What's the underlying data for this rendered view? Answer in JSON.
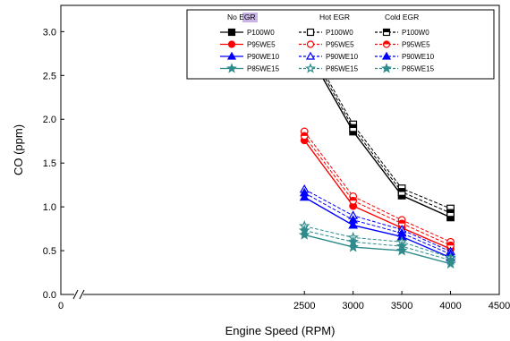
{
  "chart_data": {
    "type": "line",
    "xlabel": "Engine Speed (RPM)",
    "ylabel": "CO (ppm)",
    "xlim": [
      0,
      4500
    ],
    "ylim": [
      0,
      3.3
    ],
    "x_ticks": [
      "0",
      "2500",
      "3000",
      "3500",
      "4000",
      "4500"
    ],
    "y_ticks": [
      "0.0",
      "0.5",
      "1.0",
      "1.5",
      "2.0",
      "2.5",
      "3.0"
    ],
    "axis_break": "//",
    "x": [
      2500,
      3000,
      3500,
      4000
    ],
    "legend": {
      "position": "top-right",
      "groups": [
        {
          "label": "No EGR",
          "highlight": "#c9b4e8"
        },
        {
          "label": "Hot EGR"
        },
        {
          "label": "Cold EGR"
        }
      ]
    },
    "series": [
      {
        "name": "P100W0",
        "group": "No EGR",
        "color": "#000000",
        "marker": "square",
        "fill": "filled",
        "line": "solid",
        "values": [
          2.84,
          1.86,
          1.13,
          0.88
        ]
      },
      {
        "name": "P100W0",
        "group": "Hot EGR",
        "color": "#000000",
        "marker": "square",
        "fill": "open",
        "line": "dashed",
        "values": [
          2.93,
          1.94,
          1.21,
          0.98
        ]
      },
      {
        "name": "P100W0",
        "group": "Cold EGR",
        "color": "#000000",
        "marker": "square",
        "fill": "half",
        "line": "dashed",
        "values": [
          2.89,
          1.9,
          1.17,
          0.93
        ]
      },
      {
        "name": "P95WE5",
        "group": "No EGR",
        "color": "#ff0000",
        "marker": "circle",
        "fill": "filled",
        "line": "solid",
        "values": [
          1.76,
          1.01,
          0.76,
          0.52
        ]
      },
      {
        "name": "P95WE5",
        "group": "Hot EGR",
        "color": "#ff0000",
        "marker": "circle",
        "fill": "open",
        "line": "dashed",
        "values": [
          1.86,
          1.12,
          0.85,
          0.6
        ]
      },
      {
        "name": "P95WE5",
        "group": "Cold EGR",
        "color": "#ff0000",
        "marker": "circle",
        "fill": "half",
        "line": "dashed",
        "values": [
          1.81,
          1.07,
          0.81,
          0.56
        ]
      },
      {
        "name": "P90WE10",
        "group": "No EGR",
        "color": "#0000ff",
        "marker": "triangle",
        "fill": "filled",
        "line": "solid",
        "values": [
          1.11,
          0.79,
          0.66,
          0.42
        ]
      },
      {
        "name": "P90WE10",
        "group": "Hot EGR",
        "color": "#0000ff",
        "marker": "triangle",
        "fill": "open",
        "line": "dashed",
        "values": [
          1.2,
          0.9,
          0.74,
          0.49
        ]
      },
      {
        "name": "P90WE10",
        "group": "Cold EGR",
        "color": "#0000ff",
        "marker": "triangle",
        "fill": "filled",
        "line": "dashed",
        "values": [
          1.16,
          0.85,
          0.7,
          0.46
        ]
      },
      {
        "name": "P85WE15",
        "group": "No EGR",
        "color": "#2e8b8b",
        "marker": "star",
        "fill": "filled",
        "line": "solid",
        "values": [
          0.68,
          0.54,
          0.5,
          0.35
        ]
      },
      {
        "name": "P85WE15",
        "group": "Hot EGR",
        "color": "#2e8b8b",
        "marker": "star",
        "fill": "open",
        "line": "dashed",
        "values": [
          0.78,
          0.65,
          0.6,
          0.42
        ]
      },
      {
        "name": "P85WE15",
        "group": "Cold EGR",
        "color": "#2e8b8b",
        "marker": "star",
        "fill": "filled",
        "line": "dashed",
        "values": [
          0.73,
          0.6,
          0.55,
          0.39
        ]
      }
    ]
  }
}
